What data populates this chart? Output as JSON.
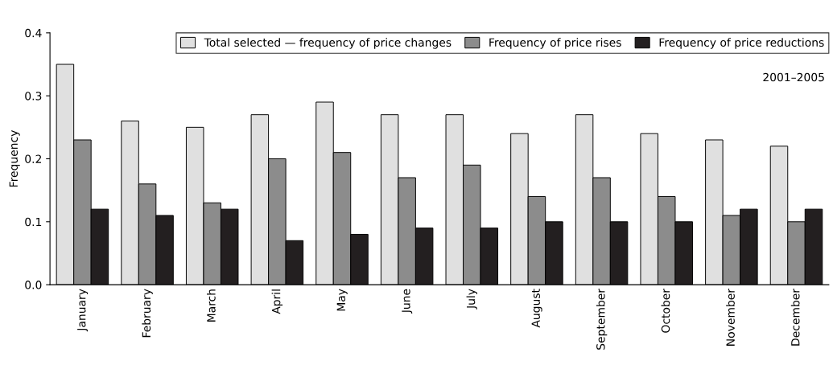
{
  "chart_data": {
    "type": "bar",
    "ylabel": "Frequency",
    "categories": [
      "January",
      "February",
      "March",
      "April",
      "May",
      "June",
      "July",
      "August",
      "September",
      "October",
      "November",
      "December"
    ],
    "series": [
      {
        "name": "Total selected — frequency of price changes",
        "color": "#e0e0e0",
        "values": [
          0.35,
          0.26,
          0.25,
          0.27,
          0.29,
          0.27,
          0.27,
          0.24,
          0.27,
          0.24,
          0.23,
          0.22
        ]
      },
      {
        "name": "Frequency of price rises",
        "color": "#8c8c8c",
        "values": [
          0.23,
          0.16,
          0.13,
          0.2,
          0.21,
          0.17,
          0.19,
          0.14,
          0.17,
          0.14,
          0.11,
          0.1
        ]
      },
      {
        "name": "Frequency of price reductions",
        "color": "#231f20",
        "values": [
          0.12,
          0.11,
          0.12,
          0.07,
          0.08,
          0.09,
          0.09,
          0.1,
          0.1,
          0.1,
          0.12,
          0.12
        ]
      }
    ],
    "ylim": [
      0,
      0.4
    ],
    "yticks": [
      {
        "value": 0,
        "label": "0.0"
      },
      {
        "value": 0.1,
        "label": "0.1"
      },
      {
        "value": 0.2,
        "label": "0.2"
      },
      {
        "value": 0.3,
        "label": "0.3"
      },
      {
        "value": 0.4,
        "label": "0.4"
      }
    ],
    "annotations": [
      "2001–2005"
    ],
    "legend": "top right",
    "grid": false
  }
}
